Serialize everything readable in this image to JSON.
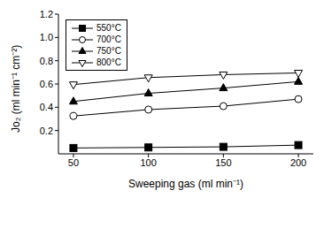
{
  "chart_data": {
    "type": "line",
    "x_label": "Sweeping gas (ml min⁻¹)",
    "y_label": "Jo₂ (ml min⁻¹ cm⁻²)",
    "x": [
      50,
      100,
      150,
      200
    ],
    "xlim": [
      40,
      210
    ],
    "xticks": [
      50,
      100,
      150,
      200
    ],
    "ylim": [
      0,
      1.2
    ],
    "yticks": [
      0.2,
      0.4,
      0.6,
      0.8,
      {
        "value": 1.0,
        "label": "1.0"
      },
      1.2
    ],
    "legend": "upper left",
    "grid": false,
    "series": [
      {
        "name": "550°C",
        "color": "#000000",
        "marker": "filled_square",
        "line_style": "solid",
        "values": [
          0.05,
          0.055,
          0.06,
          0.075
        ]
      },
      {
        "name": "700°C",
        "color": "#000000",
        "marker": "open_circle",
        "line_style": "solid",
        "values": [
          0.325,
          0.38,
          0.41,
          0.47
        ]
      },
      {
        "name": "750°C",
        "color": "#000000",
        "marker": "filled_triangle",
        "line_style": "solid",
        "values": [
          0.45,
          0.52,
          0.565,
          0.62
        ]
      },
      {
        "name": "800°C",
        "color": "#000000",
        "marker": "open_triangle_down",
        "line_style": "solid",
        "values": [
          0.595,
          0.655,
          0.68,
          0.695
        ]
      }
    ]
  }
}
